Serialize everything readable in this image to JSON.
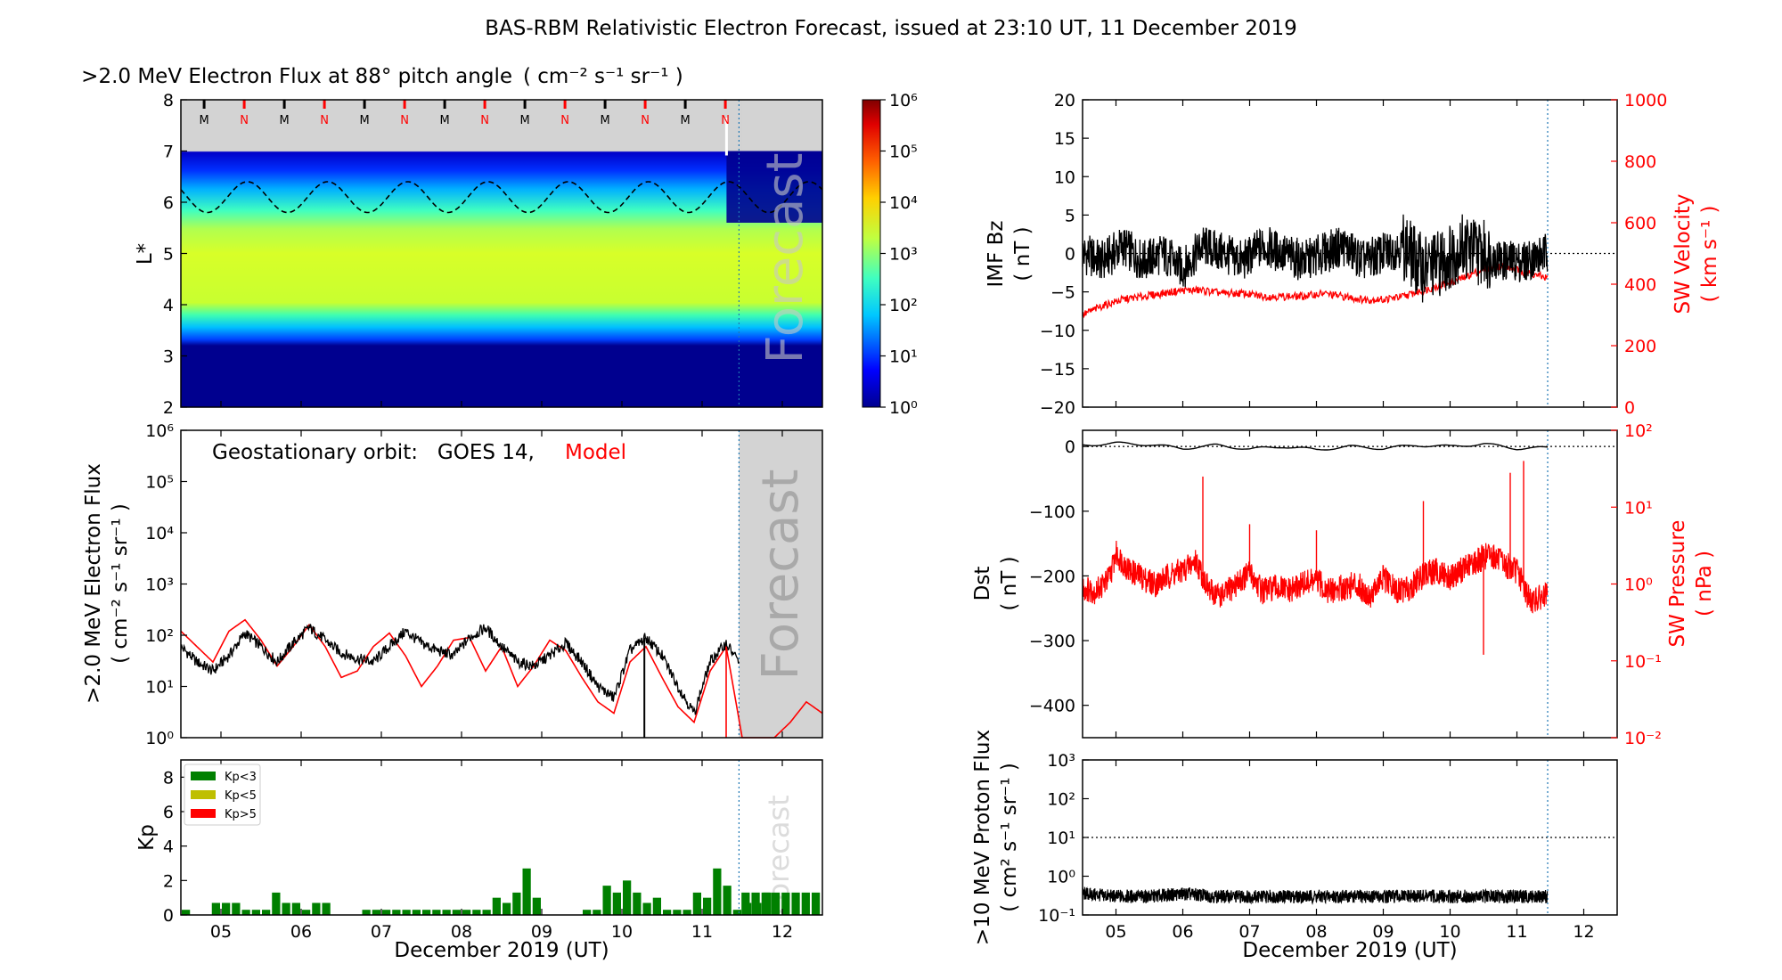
{
  "figure": {
    "title": "BAS-RBM Relativistic Electron Forecast, issued at 23:10 UT, 11 December 2019",
    "xlabel": "December 2019 (UT)",
    "forecast_label": "Forecast",
    "day_ticks": [
      "05",
      "06",
      "07",
      "08",
      "09",
      "10",
      "11",
      "12"
    ],
    "issue_day": 11.46,
    "day_range": [
      4.5,
      12.5
    ],
    "colors": {
      "black": "#000000",
      "red": "#ff0000",
      "forecast_shade": "#d3d3d3",
      "forecast_line": "#1f77b4",
      "kp_green": "#008000",
      "kp_yellow": "#bfbf00",
      "kp_red": "#ff0000"
    }
  },
  "chart_data": [
    {
      "id": "flux_map",
      "type": "heatmap",
      "title": ">2.0 MeV Electron Flux at 88° pitch angle",
      "title_units": "( cm⁻² s⁻¹ sr⁻¹ )",
      "ylabel": "L*",
      "ylim": [
        2,
        8
      ],
      "yticks": [
        "2",
        "3",
        "4",
        "5",
        "6",
        "7",
        "8"
      ],
      "colorbar": {
        "range": [
          1,
          1000000
        ],
        "scale": "log",
        "ticks": [
          "10⁰",
          "10¹",
          "10²",
          "10³",
          "10⁴",
          "10⁵",
          "10⁶"
        ]
      },
      "mn_markers": [
        "M",
        "N",
        "M",
        "N",
        "M",
        "N",
        "M",
        "N",
        "M",
        "N",
        "M",
        "N",
        "M",
        "N"
      ],
      "magnetopause_L_mean": 6.1,
      "magnetopause_L_amplitude": 0.3,
      "outer_belt_L": [
        3.3,
        7.0
      ],
      "peak_L": 4.5
    },
    {
      "id": "geo_flux",
      "type": "line",
      "ylabel": ">2.0 MeV Electron Flux",
      "yunits": "( cm⁻² s⁻¹ sr⁻¹ )",
      "annotation_prefix": "Geostationary orbit:   GOES 14,",
      "annotation_model": "Model",
      "yscale": "log",
      "ylim": [
        1,
        1000000
      ],
      "yticks": [
        "10⁰",
        "10¹",
        "10²",
        "10³",
        "10⁴",
        "10⁵",
        "10⁶"
      ],
      "series": [
        {
          "name": "GOES 14",
          "color": "#000000",
          "x": [
            4.5,
            4.7,
            4.9,
            5.1,
            5.3,
            5.5,
            5.7,
            5.9,
            6.1,
            6.3,
            6.5,
            6.7,
            6.9,
            7.1,
            7.3,
            7.5,
            7.7,
            7.9,
            8.1,
            8.3,
            8.5,
            8.7,
            8.9,
            9.1,
            9.3,
            9.5,
            9.7,
            9.9,
            10.1,
            10.3,
            10.5,
            10.7,
            10.9,
            11.1,
            11.3,
            11.46
          ],
          "y": [
            60,
            30,
            20,
            40,
            110,
            60,
            30,
            70,
            140,
            80,
            45,
            35,
            30,
            60,
            120,
            70,
            50,
            40,
            90,
            140,
            60,
            30,
            25,
            40,
            70,
            30,
            10,
            6,
            50,
            90,
            40,
            10,
            3,
            30,
            70,
            30
          ]
        },
        {
          "name": "Model",
          "color": "#ff0000",
          "x": [
            4.5,
            4.7,
            4.9,
            5.1,
            5.3,
            5.5,
            5.7,
            5.9,
            6.1,
            6.3,
            6.5,
            6.7,
            6.9,
            7.1,
            7.3,
            7.5,
            7.7,
            7.9,
            8.1,
            8.3,
            8.5,
            8.7,
            8.9,
            9.1,
            9.3,
            9.5,
            9.7,
            9.9,
            10.1,
            10.3,
            10.5,
            10.7,
            10.9,
            11.1,
            11.3,
            11.5,
            11.9,
            12.1,
            12.3,
            12.5
          ],
          "y": [
            120,
            60,
            30,
            120,
            200,
            80,
            25,
            60,
            160,
            60,
            15,
            20,
            60,
            110,
            40,
            10,
            25,
            80,
            90,
            20,
            60,
            10,
            25,
            80,
            50,
            15,
            5,
            3,
            30,
            60,
            15,
            4,
            2,
            20,
            60,
            1,
            1,
            2,
            5,
            3
          ]
        }
      ]
    },
    {
      "id": "kp",
      "type": "bar",
      "ylabel": "Kp",
      "ylim": [
        0,
        9
      ],
      "yticks": [
        "0",
        "2",
        "4",
        "6",
        "8"
      ],
      "legend": [
        {
          "label": "Kp<3",
          "color": "#008000"
        },
        {
          "label": "Kp<5",
          "color": "#bfbf00"
        },
        {
          "label": "Kp>5",
          "color": "#ff0000"
        }
      ],
      "bar_width_days": 0.125,
      "start_day": 4.5,
      "values": [
        0.3,
        0,
        0,
        0.7,
        0.7,
        0.7,
        0.3,
        0.3,
        0.3,
        1.3,
        0.7,
        0.7,
        0.3,
        0.7,
        0.7,
        0,
        0,
        0,
        0.3,
        0.3,
        0.3,
        0.3,
        0.3,
        0.3,
        0.3,
        0.3,
        0.3,
        0.3,
        0.3,
        0.3,
        0.3,
        1.0,
        0.7,
        1.3,
        2.7,
        1.0,
        0,
        0,
        0,
        0,
        0.3,
        0.3,
        1.7,
        1.3,
        2.0,
        1.3,
        0.7,
        1.0,
        0.3,
        0.3,
        0.3,
        1.3,
        1.0,
        2.7,
        1.7,
        0.3,
        0.7,
        0.7,
        1.3
      ],
      "forecast_values": [
        1.3,
        1.3,
        1.3,
        1.3,
        1.3,
        1.3,
        1.3,
        1.3
      ]
    },
    {
      "id": "imf",
      "type": "line",
      "ylabel": "IMF Bz",
      "yunits": "( nT )",
      "ylim": [
        -20,
        20
      ],
      "yticks": [
        "20",
        "15",
        "10",
        "5",
        "0",
        "−5",
        "−10",
        "−15",
        "−20"
      ],
      "y2label": "SW Velocity",
      "y2units": "( km s⁻¹ )",
      "y2lim": [
        0,
        1000
      ],
      "y2ticks": [
        "0",
        "200",
        "400",
        "600",
        "800",
        "1000"
      ],
      "series": [
        {
          "name": "IMF Bz",
          "color": "#000000",
          "x": [
            4.5,
            4.8,
            5.1,
            5.4,
            5.7,
            6.0,
            6.3,
            6.6,
            6.9,
            7.2,
            7.5,
            7.8,
            8.1,
            8.4,
            8.7,
            9.0,
            9.3,
            9.6,
            9.9,
            10.2,
            10.5,
            10.8,
            11.1,
            11.46
          ],
          "y": [
            0,
            -1,
            1,
            -1,
            0,
            -2,
            1,
            0,
            -1,
            1,
            0,
            -1,
            0,
            1,
            -1,
            0,
            1,
            -2,
            -1,
            1,
            0,
            -1,
            -1,
            0
          ]
        },
        {
          "name": "SW Velocity",
          "color": "#ff0000",
          "x": [
            4.5,
            4.8,
            5.1,
            5.4,
            5.7,
            6.0,
            6.3,
            6.6,
            6.9,
            7.2,
            7.5,
            7.8,
            8.1,
            8.4,
            8.7,
            9.0,
            9.3,
            9.6,
            9.9,
            10.2,
            10.5,
            10.8,
            11.1,
            11.46
          ],
          "y": [
            300,
            330,
            350,
            360,
            370,
            380,
            380,
            370,
            370,
            360,
            360,
            360,
            370,
            360,
            350,
            350,
            360,
            380,
            400,
            420,
            450,
            460,
            440,
            420
          ]
        }
      ]
    },
    {
      "id": "dst",
      "type": "line",
      "ylabel": "Dst",
      "yunits": "( nT )",
      "ylim": [
        -450,
        25
      ],
      "yticks": [
        "0",
        "−100",
        "−200",
        "−300",
        "−400"
      ],
      "y2label": "SW Pressure",
      "y2units": "( nPa )",
      "y2scale": "log",
      "y2lim": [
        0.01,
        100
      ],
      "y2ticks": [
        "10⁻²",
        "10⁻¹",
        "10⁰",
        "10¹",
        "10²"
      ],
      "series": [
        {
          "name": "Dst",
          "color": "#000000",
          "x": [
            4.5,
            5.0,
            5.5,
            6.0,
            6.5,
            7.0,
            7.5,
            8.0,
            8.5,
            9.0,
            9.5,
            10.0,
            10.5,
            11.0,
            11.46
          ],
          "y": [
            2,
            5,
            3,
            -3,
            2,
            -4,
            0,
            -5,
            0,
            -3,
            2,
            0,
            4,
            -3,
            -2
          ]
        },
        {
          "name": "SW Pressure",
          "color": "#ff0000",
          "x": [
            4.5,
            4.7,
            4.9,
            5.0,
            5.2,
            5.4,
            5.6,
            5.8,
            6.0,
            6.2,
            6.4,
            6.6,
            6.8,
            7.0,
            7.2,
            7.4,
            7.6,
            7.8,
            8.0,
            8.2,
            8.4,
            8.6,
            8.8,
            9.0,
            9.2,
            9.4,
            9.6,
            9.8,
            10.0,
            10.2,
            10.4,
            10.6,
            10.8,
            11.0,
            11.2,
            11.46
          ],
          "y": [
            0.9,
            0.8,
            1.2,
            2.5,
            1.5,
            1.2,
            1.0,
            1.3,
            1.5,
            2.0,
            0.8,
            0.7,
            1.0,
            1.4,
            0.8,
            0.9,
            0.8,
            1.0,
            1.1,
            0.8,
            0.9,
            1.0,
            0.7,
            1.2,
            0.8,
            0.9,
            1.3,
            1.5,
            1.2,
            1.6,
            2.0,
            2.5,
            1.8,
            1.5,
            0.6,
            0.7
          ]
        }
      ],
      "spikes": [
        [
          6.3,
          25
        ],
        [
          7.0,
          6
        ],
        [
          8.0,
          5
        ],
        [
          9.6,
          12
        ],
        [
          10.5,
          0.12
        ],
        [
          10.9,
          28
        ],
        [
          11.1,
          40
        ]
      ]
    },
    {
      "id": "proton",
      "type": "line",
      "ylabel": ">10 MeV Proton Flux",
      "yunits": "( cm² s⁻¹ sr⁻¹ )",
      "yscale": "log",
      "ylim": [
        0.1,
        1000
      ],
      "yticks": [
        "10⁻¹",
        "10⁰",
        "10¹",
        "10²",
        "10³"
      ],
      "threshold": 10,
      "series": [
        {
          "name": "Proton flux",
          "color": "#000000",
          "x": [
            4.5,
            5.0,
            5.5,
            6.0,
            6.5,
            7.0,
            7.5,
            8.0,
            8.5,
            9.0,
            9.5,
            10.0,
            10.5,
            11.0,
            11.46
          ],
          "y": [
            0.35,
            0.3,
            0.3,
            0.35,
            0.3,
            0.3,
            0.3,
            0.3,
            0.3,
            0.3,
            0.3,
            0.3,
            0.3,
            0.3,
            0.3
          ]
        }
      ]
    }
  ]
}
